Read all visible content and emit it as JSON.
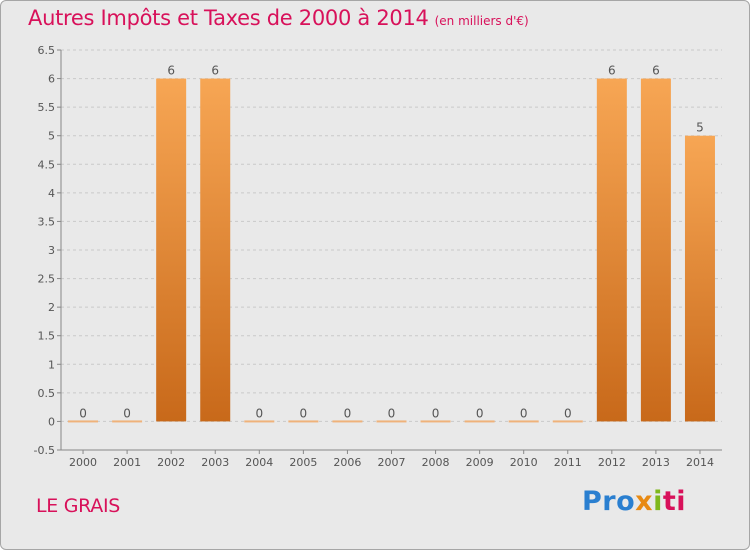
{
  "header": {
    "title": "Autres Impôts et Taxes de 2000 à 2014",
    "unit": "(en milliers d'€)"
  },
  "footer": {
    "commune": "LE GRAIS",
    "logo": [
      "Pro",
      "x",
      "i",
      "ti"
    ]
  },
  "colors": {
    "accent": "#d8115a",
    "bar_top": "#f7a654",
    "bar_bottom": "#c8691a",
    "grid": "#c9c9c9",
    "background": "#e9e9e9"
  },
  "chart_data": {
    "type": "bar",
    "categories": [
      "2000",
      "2001",
      "2002",
      "2003",
      "2004",
      "2005",
      "2006",
      "2007",
      "2008",
      "2009",
      "2010",
      "2011",
      "2012",
      "2013",
      "2014"
    ],
    "values": [
      0,
      0,
      6,
      6,
      0,
      0,
      0,
      0,
      0,
      0,
      0,
      0,
      6,
      6,
      5
    ],
    "value_labels": [
      "0",
      "0",
      "6",
      "6",
      "0",
      "0",
      "0",
      "0",
      "0",
      "0",
      "0",
      "0",
      "6",
      "6",
      "5"
    ],
    "yticks": [
      "6.5",
      "6",
      "5.5",
      "5",
      "4.5",
      "4",
      "3.5",
      "3",
      "2.5",
      "2",
      "1.5",
      "1",
      "0.5",
      "0",
      "-0.5"
    ],
    "ylim": [
      -0.5,
      6.5
    ],
    "grid": "horizontal-dashed"
  }
}
